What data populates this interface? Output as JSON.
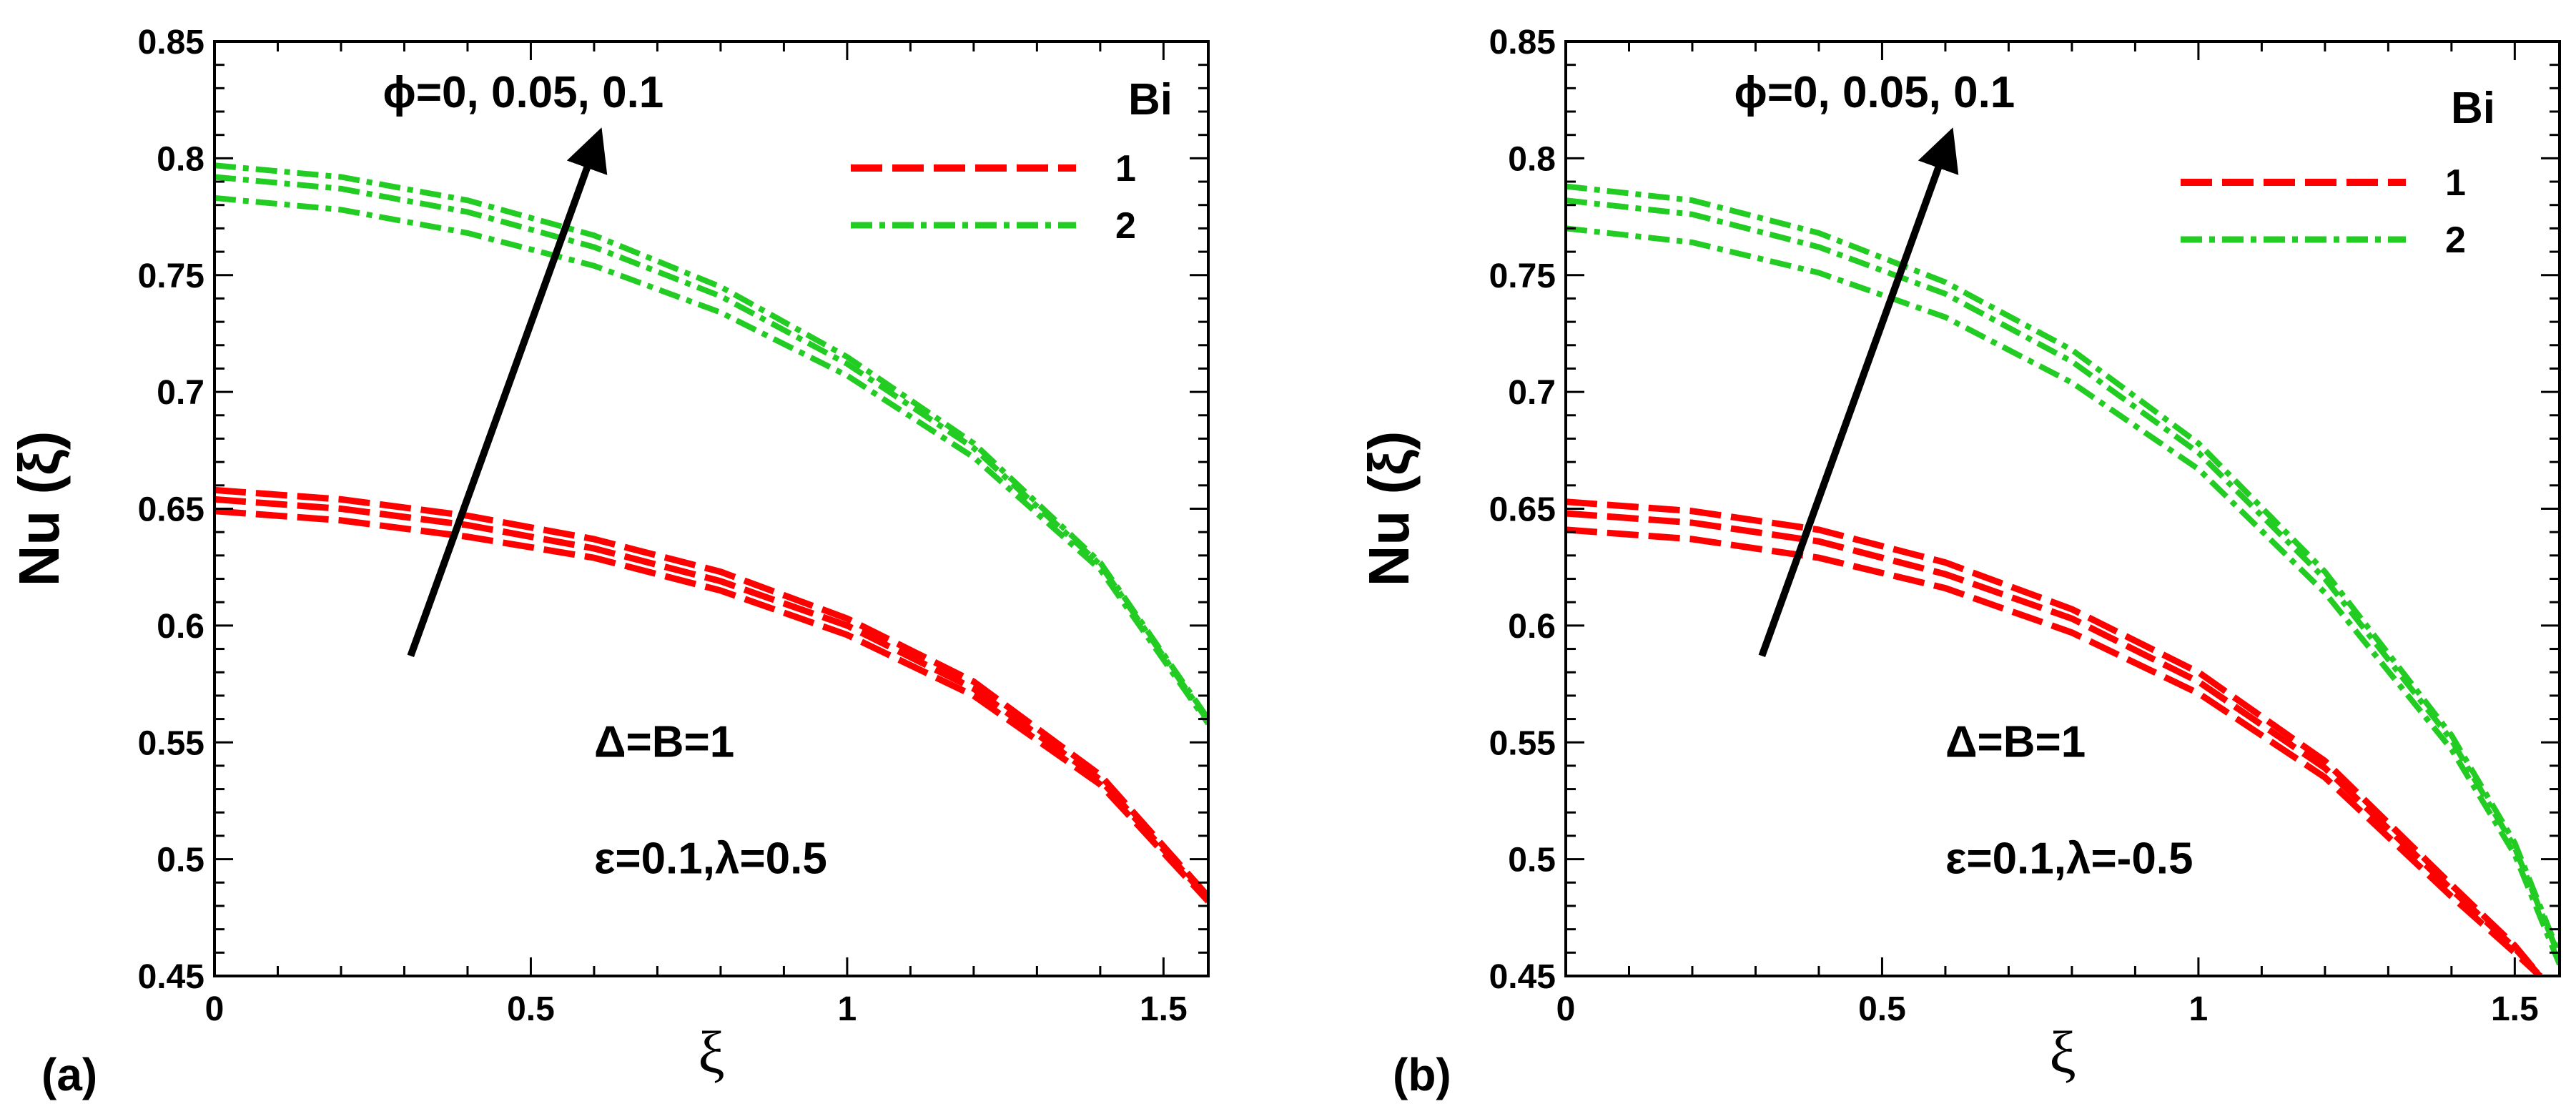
{
  "colors": {
    "series_1": "#ff0000",
    "series_2": "#22cc22",
    "axes": "#000000"
  },
  "chart_data": [
    {
      "panel": "(a)",
      "type": "line",
      "xlabel": "ξ",
      "ylabel": "Nu (ξ)",
      "xlim": [
        0,
        1.5708
      ],
      "ylim": [
        0.45,
        0.85
      ],
      "x_ticks": [
        0,
        0.5,
        1,
        1.5
      ],
      "x_tick_labels": [
        "0",
        "0.5",
        "1",
        "1.5"
      ],
      "y_ticks": [
        0.45,
        0.5,
        0.55,
        0.6,
        0.65,
        0.7,
        0.75,
        0.8,
        0.85
      ],
      "y_tick_labels": [
        "0.45",
        "0.5",
        "0.55",
        "0.6",
        "0.65",
        "0.7",
        "0.75",
        "0.8",
        "0.85"
      ],
      "legend": {
        "title": "Bi",
        "entries": [
          "1",
          "2"
        ],
        "placement": "top-right"
      },
      "arrow_label": "ϕ=0, 0.05, 0.1",
      "arrow_from": [
        0.31,
        0.587
      ],
      "arrow_to": [
        0.605,
        0.808
      ],
      "annotations": [
        "Δ=B=1",
        "ε=0.1,λ=0.5"
      ],
      "annotation_positions": [
        [
          0.6,
          0.55
        ],
        [
          0.6,
          0.5
        ]
      ],
      "series": [
        {
          "name": "Bi=1, ϕ=0",
          "group": "1",
          "style": "dash",
          "x": [
            0,
            0.2,
            0.4,
            0.6,
            0.8,
            1.0,
            1.2,
            1.4,
            1.5708
          ],
          "y": [
            0.649,
            0.645,
            0.638,
            0.629,
            0.615,
            0.596,
            0.57,
            0.532,
            0.482
          ]
        },
        {
          "name": "Bi=1, ϕ=0.05",
          "group": "1",
          "style": "dash",
          "x": [
            0,
            0.2,
            0.4,
            0.6,
            0.8,
            1.0,
            1.2,
            1.4,
            1.5708
          ],
          "y": [
            0.654,
            0.65,
            0.643,
            0.633,
            0.619,
            0.6,
            0.573,
            0.534,
            0.483
          ]
        },
        {
          "name": "Bi=1, ϕ=0.1",
          "group": "1",
          "style": "dash",
          "x": [
            0,
            0.2,
            0.4,
            0.6,
            0.8,
            1.0,
            1.2,
            1.4,
            1.5708
          ],
          "y": [
            0.658,
            0.654,
            0.647,
            0.637,
            0.623,
            0.603,
            0.576,
            0.536,
            0.484
          ]
        },
        {
          "name": "Bi=2, ϕ=0",
          "group": "2",
          "style": "dashdot",
          "x": [
            0,
            0.2,
            0.4,
            0.6,
            0.8,
            1.0,
            1.2,
            1.4,
            1.5708
          ],
          "y": [
            0.783,
            0.778,
            0.768,
            0.754,
            0.734,
            0.707,
            0.672,
            0.624,
            0.558
          ]
        },
        {
          "name": "Bi=2, ϕ=0.05",
          "group": "2",
          "style": "dashdot",
          "x": [
            0,
            0.2,
            0.4,
            0.6,
            0.8,
            1.0,
            1.2,
            1.4,
            1.5708
          ],
          "y": [
            0.792,
            0.787,
            0.777,
            0.762,
            0.741,
            0.712,
            0.676,
            0.626,
            0.559
          ]
        },
        {
          "name": "Bi=2, ϕ=0.1",
          "group": "2",
          "style": "dashdot",
          "x": [
            0,
            0.2,
            0.4,
            0.6,
            0.8,
            1.0,
            1.2,
            1.4,
            1.5708
          ],
          "y": [
            0.797,
            0.792,
            0.782,
            0.767,
            0.745,
            0.715,
            0.678,
            0.627,
            0.56
          ]
        }
      ]
    },
    {
      "panel": "(b)",
      "type": "line",
      "xlabel": "ξ",
      "ylabel": "Nu (ξ)",
      "xlim": [
        0,
        1.5708
      ],
      "ylim": [
        0.45,
        0.85
      ],
      "x_ticks": [
        0,
        0.5,
        1,
        1.5
      ],
      "x_tick_labels": [
        "0",
        "0.5",
        "1",
        "1.5"
      ],
      "y_ticks": [
        0.45,
        0.5,
        0.55,
        0.6,
        0.65,
        0.7,
        0.75,
        0.8,
        0.85
      ],
      "y_tick_labels": [
        "0.45",
        "0.5",
        "0.55",
        "0.6",
        "0.65",
        "0.7",
        "0.75",
        "0.8",
        "0.85"
      ],
      "legend": {
        "title": "Bi",
        "entries": [
          "1",
          "2"
        ],
        "placement": "top-right"
      },
      "arrow_label": "ϕ=0, 0.05, 0.1",
      "arrow_from": [
        0.31,
        0.587
      ],
      "arrow_to": [
        0.605,
        0.808
      ],
      "annotations": [
        "Δ=B=1",
        "ε=0.1,λ=-0.5"
      ],
      "annotation_positions": [
        [
          0.6,
          0.55
        ],
        [
          0.6,
          0.5
        ]
      ],
      "series": [
        {
          "name": "Bi=1, ϕ=0",
          "group": "1",
          "style": "dash",
          "x": [
            0,
            0.2,
            0.4,
            0.6,
            0.8,
            1.0,
            1.2,
            1.4,
            1.5,
            1.54
          ],
          "y": [
            0.641,
            0.637,
            0.629,
            0.616,
            0.597,
            0.571,
            0.535,
            0.484,
            0.46,
            0.45
          ]
        },
        {
          "name": "Bi=1, ϕ=0.05",
          "group": "1",
          "style": "dash",
          "x": [
            0,
            0.2,
            0.4,
            0.6,
            0.8,
            1.0,
            1.2,
            1.4,
            1.5,
            1.54
          ],
          "y": [
            0.648,
            0.644,
            0.636,
            0.622,
            0.603,
            0.576,
            0.539,
            0.487,
            0.462,
            0.45
          ]
        },
        {
          "name": "Bi=1, ϕ=0.1",
          "group": "1",
          "style": "dash",
          "x": [
            0,
            0.2,
            0.4,
            0.6,
            0.8,
            1.0,
            1.2,
            1.4,
            1.5,
            1.54
          ],
          "y": [
            0.653,
            0.649,
            0.641,
            0.627,
            0.607,
            0.58,
            0.542,
            0.489,
            0.463,
            0.45
          ]
        },
        {
          "name": "Bi=2, ϕ=0",
          "group": "2",
          "style": "dashdot",
          "x": [
            0,
            0.2,
            0.4,
            0.6,
            0.8,
            1.0,
            1.2,
            1.4,
            1.5,
            1.5708
          ],
          "y": [
            0.77,
            0.764,
            0.751,
            0.732,
            0.704,
            0.667,
            0.614,
            0.547,
            0.502,
            0.455
          ]
        },
        {
          "name": "Bi=2, ϕ=0.05",
          "group": "2",
          "style": "dashdot",
          "x": [
            0,
            0.2,
            0.4,
            0.6,
            0.8,
            1.0,
            1.2,
            1.4,
            1.5,
            1.5708
          ],
          "y": [
            0.782,
            0.776,
            0.762,
            0.742,
            0.713,
            0.674,
            0.62,
            0.551,
            0.505,
            0.458
          ]
        },
        {
          "name": "Bi=2, ϕ=0.1",
          "group": "2",
          "style": "dashdot",
          "x": [
            0,
            0.2,
            0.4,
            0.6,
            0.8,
            1.0,
            1.2,
            1.4,
            1.5,
            1.5708
          ],
          "y": [
            0.788,
            0.782,
            0.768,
            0.747,
            0.718,
            0.678,
            0.623,
            0.553,
            0.507,
            0.459
          ]
        }
      ]
    }
  ]
}
